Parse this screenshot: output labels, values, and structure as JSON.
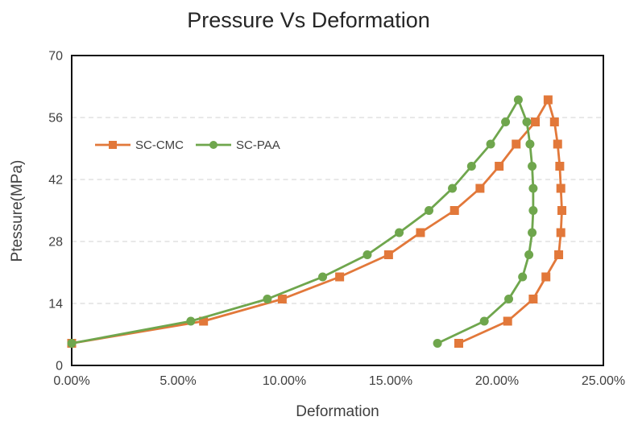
{
  "chart_data": {
    "type": "line",
    "title": "Pressure Vs Deformation",
    "xlabel": "Deformation",
    "ylabel": "Ptessure(MPa)",
    "xlim": [
      0,
      25
    ],
    "ylim": [
      0,
      70
    ],
    "x_ticks": [
      {
        "value": 0,
        "label": "0.00%"
      },
      {
        "value": 5,
        "label": "5.00%"
      },
      {
        "value": 10,
        "label": "10.00%"
      },
      {
        "value": 15,
        "label": "15.00%"
      },
      {
        "value": 20,
        "label": "20.00%"
      },
      {
        "value": 25,
        "label": "25.00%"
      }
    ],
    "y_ticks": [
      {
        "value": 0,
        "label": "0"
      },
      {
        "value": 14,
        "label": "14"
      },
      {
        "value": 28,
        "label": "28"
      },
      {
        "value": 42,
        "label": "42"
      },
      {
        "value": 56,
        "label": "56"
      },
      {
        "value": 70,
        "label": "70"
      }
    ],
    "grid": "horizontal-dashed",
    "legend_position": "inside-top-left",
    "series": [
      {
        "name": "SC-CMC",
        "color": "#E2783A",
        "marker": "square",
        "points": [
          [
            0,
            5
          ],
          [
            6.2,
            10
          ],
          [
            9.9,
            15
          ],
          [
            12.6,
            20
          ],
          [
            14.9,
            25
          ],
          [
            16.4,
            30
          ],
          [
            18.0,
            35
          ],
          [
            19.2,
            40
          ],
          [
            20.1,
            45
          ],
          [
            20.9,
            50
          ],
          [
            21.8,
            55
          ],
          [
            22.4,
            60
          ],
          [
            22.7,
            55
          ],
          [
            22.85,
            50
          ],
          [
            22.95,
            45
          ],
          [
            23.0,
            40
          ],
          [
            23.05,
            35
          ],
          [
            23.0,
            30
          ],
          [
            22.9,
            25
          ],
          [
            22.3,
            20
          ],
          [
            21.7,
            15
          ],
          [
            20.5,
            10
          ],
          [
            18.2,
            5
          ]
        ]
      },
      {
        "name": "SC-PAA",
        "color": "#6FA64D",
        "marker": "circle",
        "points": [
          [
            0,
            5
          ],
          [
            5.6,
            10
          ],
          [
            9.2,
            15
          ],
          [
            11.8,
            20
          ],
          [
            13.9,
            25
          ],
          [
            15.4,
            30
          ],
          [
            16.8,
            35
          ],
          [
            17.9,
            40
          ],
          [
            18.8,
            45
          ],
          [
            19.7,
            50
          ],
          [
            20.4,
            55
          ],
          [
            21.0,
            60
          ],
          [
            21.4,
            55
          ],
          [
            21.55,
            50
          ],
          [
            21.65,
            45
          ],
          [
            21.7,
            40
          ],
          [
            21.7,
            35
          ],
          [
            21.65,
            30
          ],
          [
            21.5,
            25
          ],
          [
            21.2,
            20
          ],
          [
            20.55,
            15
          ],
          [
            19.4,
            10
          ],
          [
            17.2,
            5
          ]
        ]
      }
    ],
    "palette": {
      "background": "#FFFFFF",
      "grid": "#D9D9D9",
      "border": "#111111",
      "tick_text": "#3F3F3F",
      "title_text": "#262626"
    }
  }
}
